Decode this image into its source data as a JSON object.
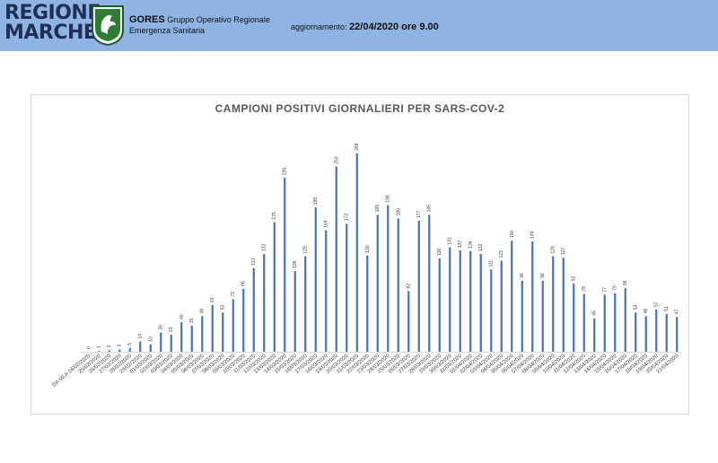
{
  "header": {
    "logo_line1": "REGIONE",
    "logo_line2": "MARCHE",
    "org_acronym": "GORES",
    "org_line1": "Gruppo Operativo Regionale",
    "org_line2": "Emergenza Sanitaria",
    "update_label": "aggiornamento:",
    "update_value": "22/04/2020 ore 9.00",
    "brand_color": "#1f2f56",
    "band_color": "#8fb4e3"
  },
  "chart_data": {
    "type": "bar",
    "title": "CAMPIONI POSITIVI GIORNALIERI PER SARS-COV-2",
    "xlabel": "",
    "ylabel": "",
    "bar_color": "#4472c4",
    "grid": false,
    "ylim": [
      0,
      280
    ],
    "categories": [
      "DA 06 A 24/02/2020",
      "25/02/2020",
      "26/02/2020",
      "27/02/2020",
      "28/02/2020",
      "29/02/2020",
      "01/03/2020",
      "02/03/2020",
      "03/03/2020",
      "04/03/2020",
      "05/03/2020",
      "06/03/2020",
      "07/03/2020",
      "08/03/2020",
      "09/03/2020",
      "10/03/2020",
      "11/03/2020",
      "12/03/2020",
      "13/03/2020",
      "14/03/2020",
      "15/03/2020",
      "16/03/2020",
      "17/03/2020",
      "18/03/2020",
      "19/03/2020",
      "20/03/2020",
      "21/03/2020",
      "22/03/2020",
      "23/03/2020",
      "24/03/2020",
      "25/03/2020",
      "26/03/2020",
      "27/03/2020",
      "28/03/2020",
      "29/03/2020",
      "30/03/2020",
      "31/03/2020",
      "01/04/2020",
      "02/04/2020",
      "03/04/2020",
      "04/04/2020",
      "05/04/2020",
      "06/04/2020",
      "07/04/2020",
      "08/04/2020",
      "09/04/2020",
      "10/04/2020",
      "11/04/2020",
      "12/04/2020",
      "13/04/2020",
      "14/04/2020",
      "15/04/2020",
      "16/04/2020",
      "17/04/2020",
      "18/04/2020",
      "19/04/2020",
      "20/04/2020",
      "21/04/2020"
    ],
    "values": [
      0,
      1,
      2,
      3,
      5,
      14,
      10,
      26,
      23,
      40,
      35,
      48,
      63,
      53,
      71,
      85,
      113,
      132,
      175,
      235,
      109,
      129,
      195,
      164,
      250,
      173,
      268,
      130,
      185,
      198,
      180,
      82,
      177,
      185,
      126,
      141,
      137,
      136,
      132,
      111,
      123,
      150,
      96,
      149,
      96,
      129,
      127,
      92,
      78,
      45,
      77,
      79,
      86,
      53,
      48,
      57,
      51,
      47
    ]
  }
}
